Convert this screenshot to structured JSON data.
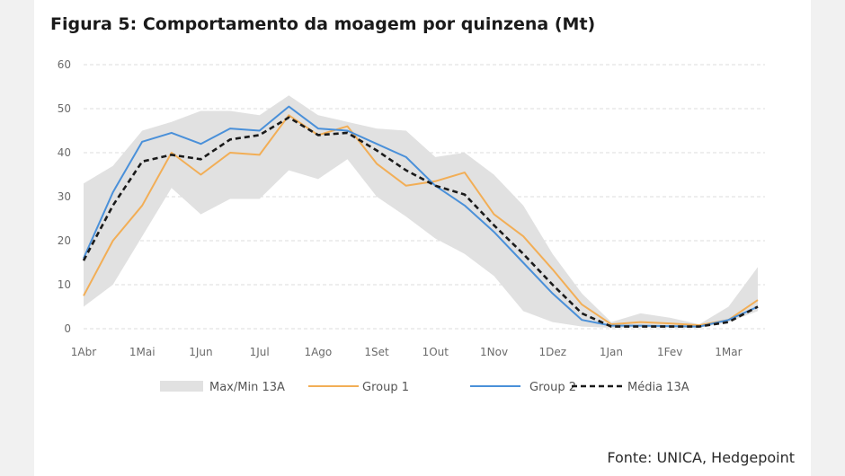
{
  "title": "Figura 5: Comportamento da moagem por quinzena (Mt)",
  "source": "Fonte: UNICA, Hedgepoint",
  "chart_data": {
    "type": "line",
    "title": "Figura 5: Comportamento da moagem por quinzena (Mt)",
    "xlabel": "",
    "ylabel": "",
    "ylim": [
      0,
      60
    ],
    "yticks": [
      0,
      10,
      20,
      30,
      40,
      50,
      60
    ],
    "grid": true,
    "legend_position": "bottom",
    "x_tick_labels": [
      "1Abr",
      "1Mai",
      "1Jun",
      "1Jul",
      "1Ago",
      "1Set",
      "1Out",
      "1Nov",
      "1Dez",
      "1Jan",
      "1Fev",
      "1Mar"
    ],
    "x_tick_positions": [
      0,
      2,
      4,
      6,
      8,
      10,
      12,
      14,
      16,
      18,
      20,
      22
    ],
    "x": [
      0,
      1,
      2,
      3,
      4,
      5,
      6,
      7,
      8,
      9,
      10,
      11,
      12,
      13,
      14,
      15,
      16,
      17,
      18,
      19,
      20,
      21,
      22,
      23
    ],
    "band": {
      "name": "Max/Min 13A",
      "color": "#e1e1e1",
      "max": [
        33,
        37,
        45,
        47,
        49.5,
        49.5,
        48.5,
        53,
        48.5,
        47,
        45.5,
        45,
        39,
        40,
        35,
        28,
        17,
        8,
        1.5,
        3.5,
        2.5,
        1,
        5,
        14
      ],
      "min": [
        5,
        10,
        21,
        32,
        26,
        29.5,
        29.5,
        36,
        34,
        38.5,
        30,
        25.5,
        20.5,
        17,
        12,
        4,
        1.5,
        0.5,
        0.2,
        0.3,
        0.2,
        0.2,
        1.5,
        4
      ]
    },
    "series": [
      {
        "name": "Group 1",
        "color": "#f2ae56",
        "dashed": false,
        "values": [
          7.5,
          20,
          28,
          40,
          35,
          40,
          39.5,
          48.5,
          44,
          46,
          37.5,
          32.5,
          33.5,
          35.5,
          26,
          21,
          13.5,
          5.5,
          1,
          1.5,
          1.2,
          0.8,
          2,
          6.5
        ]
      },
      {
        "name": "Group 2",
        "color": "#4a90d9",
        "dashed": false,
        "values": [
          16,
          31,
          42.5,
          44.5,
          42,
          45.5,
          45,
          50.5,
          45.5,
          45,
          42,
          39,
          32.5,
          28,
          22,
          15,
          8,
          2,
          0.7,
          0.7,
          0.6,
          0.5,
          2,
          5
        ]
      },
      {
        "name": "Média 13A",
        "color": "#1a1a1a",
        "dashed": true,
        "values": [
          15.5,
          28,
          38,
          39.5,
          38.5,
          43,
          44,
          48,
          44,
          44.5,
          40.5,
          36,
          32.5,
          30.5,
          23.5,
          17,
          10,
          3.5,
          0.5,
          0.5,
          0.5,
          0.5,
          1.5,
          5
        ]
      }
    ]
  }
}
